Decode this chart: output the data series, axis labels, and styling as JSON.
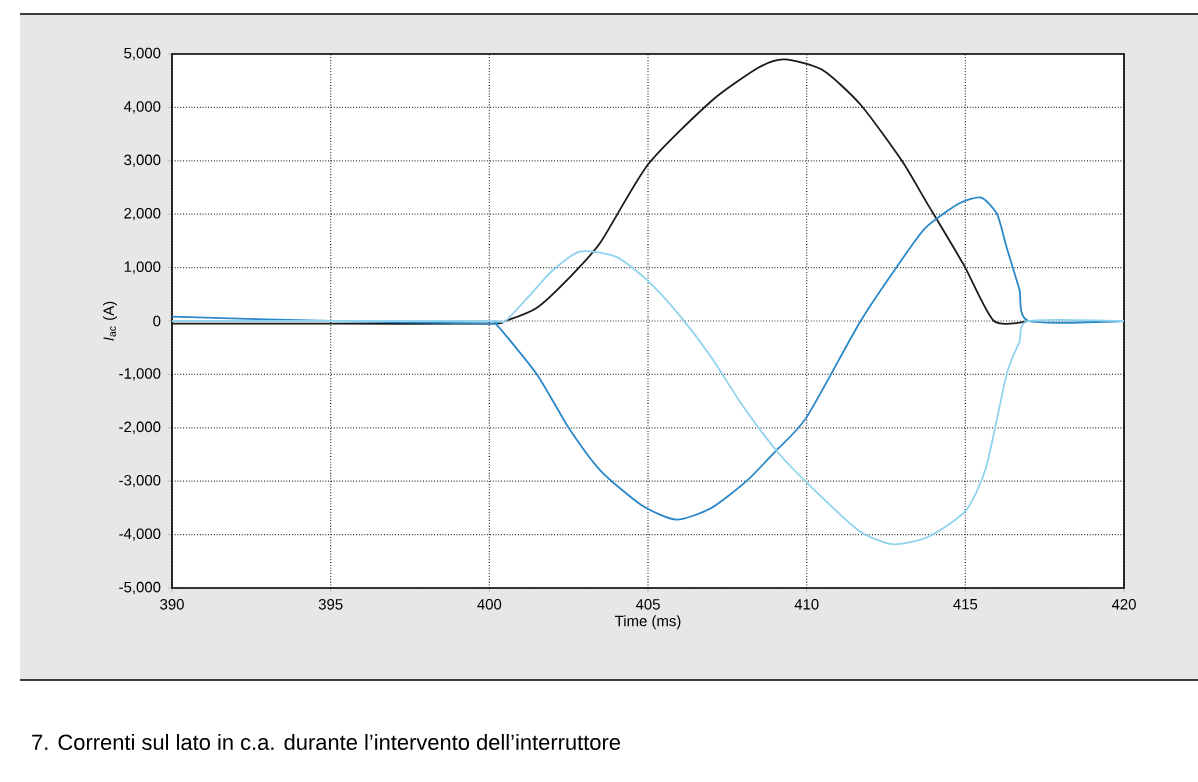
{
  "chart_data": {
    "type": "line",
    "xlabel": "Time (ms)",
    "ylabel": "*I*$_{ac}$ (A)",
    "annotations": [
      "7. Correnti sul lato in c.a. durante l’intervento dell’interruttore"
    ],
    "xlim": [
      390,
      420
    ],
    "xticks": [
      390,
      395,
      400,
      405,
      410,
      415,
      420
    ],
    "ylim": [
      -5000,
      5000
    ],
    "yticks": [
      {
        "value": -5000,
        "label": "-5,000"
      },
      {
        "value": -4000,
        "label": "-4,000"
      },
      {
        "value": -3000,
        "label": "-3,000"
      },
      {
        "value": -2000,
        "label": "-2,000"
      },
      {
        "value": -1000,
        "label": "-1,000"
      },
      0,
      {
        "value": 1000,
        "label": "1,000"
      },
      {
        "value": 2000,
        "label": "2,000"
      },
      {
        "value": 3000,
        "label": "3,000"
      },
      {
        "value": 4000,
        "label": "4,000"
      },
      {
        "value": 5000,
        "label": "5,000"
      }
    ],
    "grid": true,
    "line_style": "solid",
    "marker": "none",
    "series": [
      {
        "color": "#1a1a1a",
        "x": [
          390,
          395,
          400,
          400.5,
          401.5,
          402.5,
          403.5,
          405,
          407,
          408.5,
          409.3,
          410.5,
          411.7,
          413,
          413.75,
          414.95,
          415.9,
          417
        ],
        "values": [
          -50,
          -50,
          -50,
          0,
          250,
          800,
          1470,
          2930,
          4120,
          4750,
          4900,
          4700,
          4050,
          3000,
          2250,
          1050,
          0,
          0
        ]
      },
      {
        "color": "#2a88c8",
        "x": [
          390,
          395,
          400,
          400.2,
          401.5,
          402.5,
          403.5,
          404.8,
          405.9,
          407,
          408.1,
          409,
          410,
          411.7,
          413,
          413.75,
          414.8,
          415.5,
          416,
          416.3,
          416.7,
          417,
          420
        ],
        "values": [
          80,
          0,
          -50,
          -50,
          -1000,
          -2000,
          -2800,
          -3450,
          -3720,
          -3500,
          -3000,
          -2450,
          -1800,
          0,
          1150,
          1750,
          2200,
          2310,
          2000,
          1380,
          600,
          0,
          0
        ]
      },
      {
        "color": "#8fd3ee",
        "x": [
          390,
          395,
          400,
          400.5,
          401.3,
          402,
          402.85,
          404,
          405,
          406,
          406.95,
          408,
          409.15,
          410.6,
          411.7,
          412.7,
          413.8,
          415,
          415.65,
          416.3,
          416.7,
          417,
          420
        ],
        "values": [
          0,
          0,
          0,
          0,
          500,
          950,
          1300,
          1200,
          750,
          100,
          -640,
          -1600,
          -2500,
          -3370,
          -3950,
          -4180,
          -4050,
          -3560,
          -2750,
          -1000,
          -400,
          0,
          0
        ]
      }
    ]
  }
}
